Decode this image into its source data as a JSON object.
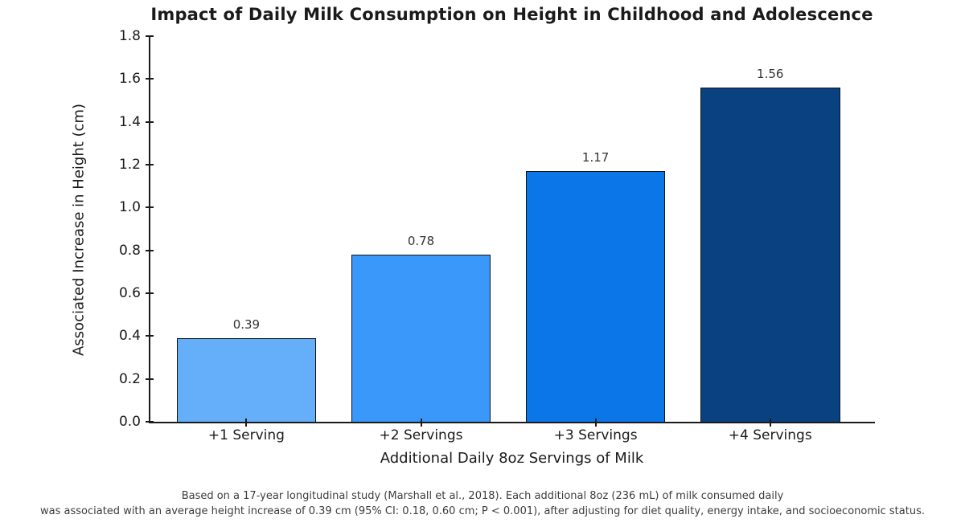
{
  "chart_data": {
    "type": "bar",
    "title": "Impact of Daily Milk Consumption on Height in Childhood and Adolescence",
    "categories": [
      "+1 Serving",
      "+2 Servings",
      "+3 Servings",
      "+4 Servings"
    ],
    "values": [
      0.39,
      0.78,
      1.17,
      1.56
    ],
    "value_labels": [
      "0.39",
      "0.78",
      "1.17",
      "1.56"
    ],
    "bar_colors": [
      "#64aefa",
      "#3a98fa",
      "#0b76e8",
      "#0a4180"
    ],
    "bar_edge_color": "#101418",
    "xlabel": "Additional Daily 8oz Servings of Milk",
    "ylabel": "Associated Increase in Height (cm)",
    "ylim": [
      0,
      1.8
    ],
    "yticks": [
      "0.0",
      "0.2",
      "0.4",
      "0.6",
      "0.8",
      "1.0",
      "1.2",
      "1.4",
      "1.6",
      "1.8"
    ],
    "xlim": [
      -0.55,
      3.6
    ],
    "bar_width": 0.8,
    "grid": false,
    "legend": null
  },
  "footnote": {
    "line1": "Based on a 17-year longitudinal study (Marshall et al., 2018). Each additional 8oz (236 mL) of milk consumed daily",
    "line2": "was associated with an average height increase of 0.39 cm (95% CI: 0.18, 0.60 cm; P < 0.001), after adjusting for diet quality, energy intake, and socioeconomic status."
  }
}
